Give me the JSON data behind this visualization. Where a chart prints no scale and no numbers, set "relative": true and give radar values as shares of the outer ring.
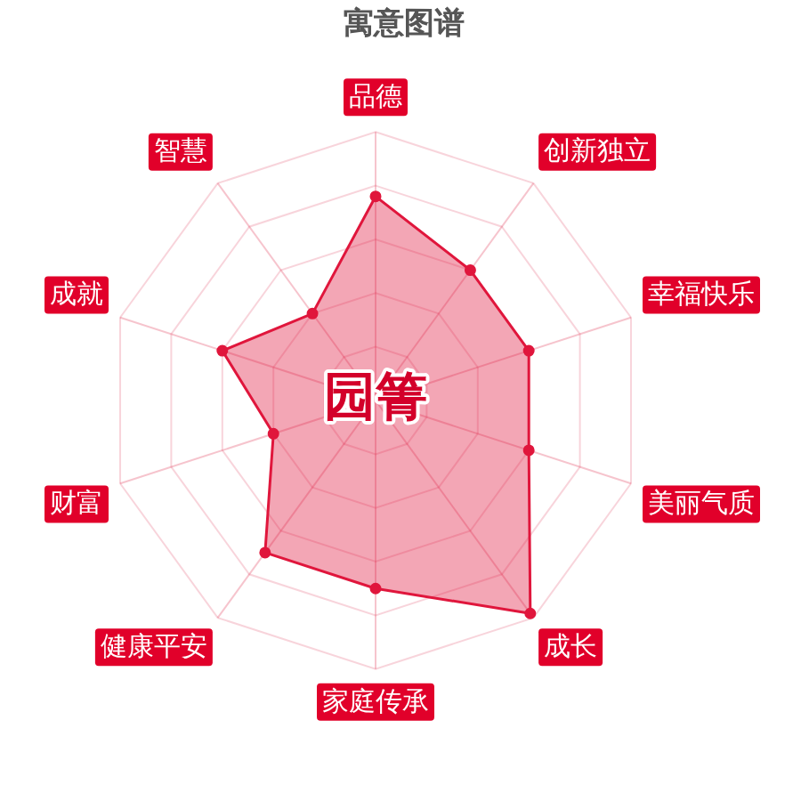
{
  "chart_data": {
    "type": "radar",
    "title": "寓意图谱",
    "categories": [
      "品德",
      "创新独立",
      "幸福快乐",
      "美丽气质",
      "成长",
      "家庭传承",
      "健康平安",
      "财富",
      "成就",
      "智慧"
    ],
    "series": [
      {
        "color": "#e0163c",
        "values": [
          0.76,
          0.6,
          0.6,
          0.6,
          0.98,
          0.7,
          0.7,
          0.4,
          0.6,
          0.4
        ]
      }
    ],
    "relative": true,
    "grid": true,
    "marker": "circle",
    "annotations": [
      "园箐"
    ]
  }
}
